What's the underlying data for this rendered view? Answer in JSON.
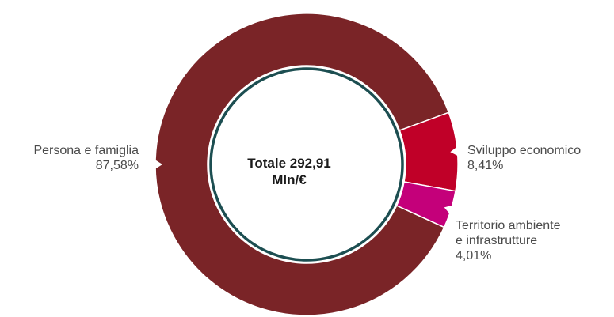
{
  "chart_data": {
    "type": "pie",
    "center_label": [
      "Totale 292,91",
      "Mln/€"
    ],
    "slices": [
      {
        "name": "Persona e famiglia",
        "label_lines": [
          "Persona e famiglia"
        ],
        "value": 87.58,
        "value_text": "87,58%",
        "color": "#7a2427"
      },
      {
        "name": "Sviluppo economico",
        "label_lines": [
          "Sviluppo economico"
        ],
        "value": 8.41,
        "value_text": "8,41%",
        "color": "#c00028"
      },
      {
        "name": "Territorio ambiente e infrastrutture",
        "label_lines": [
          "Territorio ambiente",
          "e infrastrutture"
        ],
        "value": 4.01,
        "value_text": "4,01%",
        "color": "#c4007a"
      }
    ],
    "ring_color": "#1c4e51"
  }
}
